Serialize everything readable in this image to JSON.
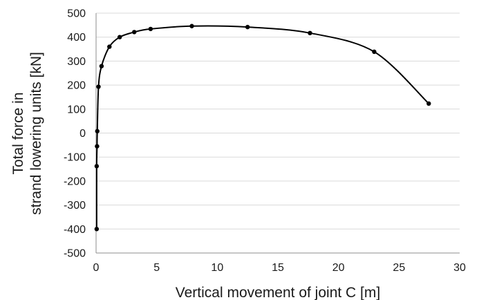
{
  "chart_data": {
    "type": "line",
    "xlabel": "Vertical movement of joint C [m]",
    "ylabel_lines": [
      "Total force in",
      "strand lowering units [kN]"
    ],
    "xlim": [
      0,
      30
    ],
    "ylim": [
      -500,
      500
    ],
    "x_ticks": [
      0,
      5,
      10,
      15,
      20,
      25,
      30
    ],
    "x_tick_labels": [
      "0",
      "5",
      "10",
      "15",
      "20",
      "25",
      "30"
    ],
    "y_ticks": [
      -500,
      -400,
      -300,
      -200,
      -100,
      0,
      100,
      200,
      300,
      400,
      500
    ],
    "y_tick_labels": [
      "-500",
      "-400",
      "-300",
      "-200",
      "-100",
      "0",
      "100",
      "200",
      "300",
      "400",
      "500"
    ],
    "grid": "horizontal",
    "series": [
      {
        "x": [
          0.05,
          0.05,
          0.08,
          0.1,
          0.2,
          0.45,
          1.1,
          1.95,
          3.15,
          4.5,
          7.9,
          12.5,
          17.65,
          22.95,
          27.45
        ],
        "y": [
          -400,
          -138,
          -55,
          8,
          193,
          279,
          360,
          400,
          421,
          434,
          446,
          442,
          417,
          339,
          123
        ]
      }
    ]
  }
}
